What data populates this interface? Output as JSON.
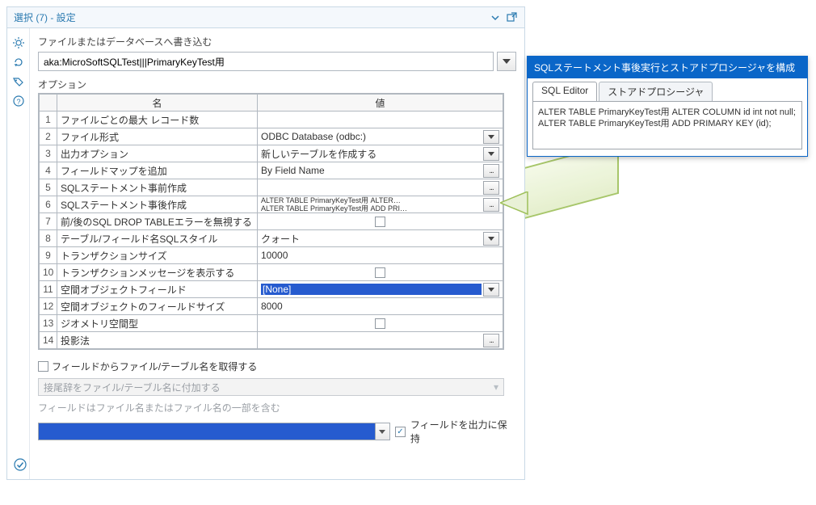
{
  "colors": {
    "accent": "#0a66c8",
    "link": "#2a7ab0",
    "border": "#b1b8c0",
    "highlight": "#265bcf"
  },
  "panel": {
    "title": "選択 (7) - 設定"
  },
  "file": {
    "label": "ファイルまたはデータベースへ書き込む",
    "value": "aka:MicroSoftSQLTest|||PrimaryKeyTest用"
  },
  "options": {
    "label": "オプション",
    "header_name": "名",
    "header_value": "値",
    "rows": [
      {
        "n": "1",
        "name": "ファイルごとの最大 レコード数",
        "value": ""
      },
      {
        "n": "2",
        "name": "ファイル形式",
        "value": "ODBC Database (odbc:)",
        "dropdown": true
      },
      {
        "n": "3",
        "name": "出力オプション",
        "value": "新しいテーブルを作成する",
        "dropdown": true
      },
      {
        "n": "4",
        "name": "フィールドマップを追加",
        "value": "By Field Name",
        "ellipsis": true
      },
      {
        "n": "5",
        "name": "SQLステートメント事前作成",
        "value": "",
        "ellipsis": true
      },
      {
        "n": "6",
        "name": "SQLステートメント事後作成",
        "value_sql": "ALTER TABLE PrimaryKeyTest用 ALTER…\nALTER TABLE PrimaryKeyTest用 ADD PRI…",
        "ellipsis": true
      },
      {
        "n": "7",
        "name": "前/後のSQL DROP TABLEエラーを無視する",
        "checkbox": true,
        "checked": false
      },
      {
        "n": "8",
        "name": "テーブル/フィールド名SQLスタイル",
        "value": "クォート",
        "dropdown": true
      },
      {
        "n": "9",
        "name": "トランザクションサイズ",
        "value": "10000"
      },
      {
        "n": "10",
        "name": "トランザクションメッセージを表示する",
        "checkbox": true,
        "checked": false
      },
      {
        "n": "11",
        "name": "空間オブジェクトフィールド",
        "value": "[None]",
        "dropdown": true,
        "highlighted": true
      },
      {
        "n": "12",
        "name": "空間オブジェクトのフィールドサイズ",
        "value": "8000"
      },
      {
        "n": "13",
        "name": "ジオメトリ空間型",
        "checkbox": true,
        "checked": false
      },
      {
        "n": "14",
        "name": "投影法",
        "value": "",
        "ellipsis": true
      }
    ]
  },
  "lower": {
    "chk_label": "フィールドからファイル/テーブル名を取得する",
    "disabled_placeholder": "接尾辞をファイル/テーブル名に付加する",
    "hint": "フィールドはファイル名またはファイル名の一部を含む",
    "keep_field": "フィールドを出力に保持"
  },
  "popup": {
    "title": "SQLステートメント事後実行とストアドプロシージャを構成",
    "tab1": "SQL Editor",
    "tab2": "ストアドプロシージャ",
    "sql": "ALTER TABLE PrimaryKeyTest用 ALTER COLUMN id int not null;\nALTER TABLE PrimaryKeyTest用 ADD PRIMARY KEY (id);"
  }
}
